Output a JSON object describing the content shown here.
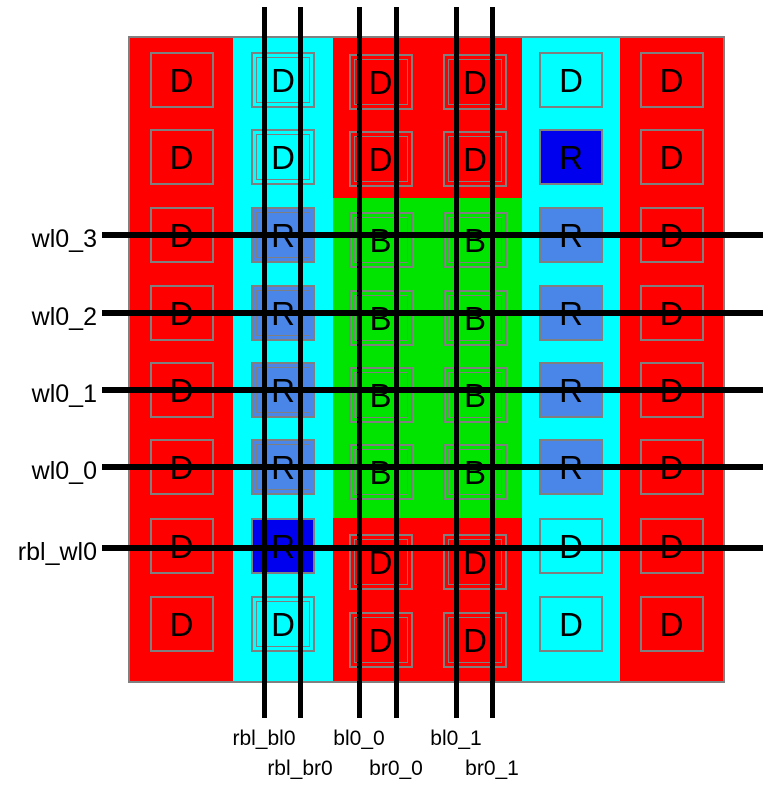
{
  "figure": {
    "description": "IC layout plot of a replica bitcell array with dummy (D), replica (R) and storage (B) cells crossed by wordlines and bitlines"
  },
  "colors": {
    "background": "#ffffff",
    "dummy_red": "#ff0000",
    "replica_column_cyan": "#00ffff",
    "bitcell_green": "#00e400",
    "replica_light_blue": "#4a86e8",
    "replica_dark_blue": "#0000ee",
    "outline_gray": "#7f7f7f",
    "border_gray": "#808080",
    "wire_black": "#000000"
  },
  "wordlines": [
    {
      "label": "wl0_3"
    },
    {
      "label": "wl0_2"
    },
    {
      "label": "wl0_1"
    },
    {
      "label": "wl0_0"
    },
    {
      "label": "rbl_wl0"
    }
  ],
  "bitlines": [
    {
      "label": "rbl_bl0"
    },
    {
      "label": "rbl_br0"
    },
    {
      "label": "bl0_0"
    },
    {
      "label": "br0_0"
    },
    {
      "label": "bl0_1"
    },
    {
      "label": "br0_1"
    }
  ],
  "grid": {
    "rows": [
      {
        "cells": [
          {
            "letter": "D",
            "fill": null,
            "double": false
          },
          {
            "letter": "D",
            "fill": null,
            "double": true
          },
          {
            "letter": "D",
            "fill": null,
            "double": true
          },
          {
            "letter": "D",
            "fill": null,
            "double": true
          },
          {
            "letter": "D",
            "fill": null,
            "double": false
          },
          {
            "letter": "D",
            "fill": null,
            "double": false
          }
        ]
      },
      {
        "cells": [
          {
            "letter": "D",
            "fill": null,
            "double": false
          },
          {
            "letter": "D",
            "fill": null,
            "double": true
          },
          {
            "letter": "D",
            "fill": null,
            "double": true
          },
          {
            "letter": "D",
            "fill": null,
            "double": true
          },
          {
            "letter": "R",
            "fill": "dark_blue",
            "double": false
          },
          {
            "letter": "D",
            "fill": null,
            "double": false
          }
        ]
      },
      {
        "cells": [
          {
            "letter": "D",
            "fill": null,
            "double": false
          },
          {
            "letter": "R",
            "fill": "light_blue",
            "double": true
          },
          {
            "letter": "B",
            "fill": null,
            "double": true
          },
          {
            "letter": "B",
            "fill": null,
            "double": true
          },
          {
            "letter": "R",
            "fill": "light_blue",
            "double": false
          },
          {
            "letter": "D",
            "fill": null,
            "double": false
          }
        ]
      },
      {
        "cells": [
          {
            "letter": "D",
            "fill": null,
            "double": false
          },
          {
            "letter": "R",
            "fill": "light_blue",
            "double": true
          },
          {
            "letter": "B",
            "fill": null,
            "double": true
          },
          {
            "letter": "B",
            "fill": null,
            "double": true
          },
          {
            "letter": "R",
            "fill": "light_blue",
            "double": false
          },
          {
            "letter": "D",
            "fill": null,
            "double": false
          }
        ]
      },
      {
        "cells": [
          {
            "letter": "D",
            "fill": null,
            "double": false
          },
          {
            "letter": "R",
            "fill": "light_blue",
            "double": true
          },
          {
            "letter": "B",
            "fill": null,
            "double": true
          },
          {
            "letter": "B",
            "fill": null,
            "double": true
          },
          {
            "letter": "R",
            "fill": "light_blue",
            "double": false
          },
          {
            "letter": "D",
            "fill": null,
            "double": false
          }
        ]
      },
      {
        "cells": [
          {
            "letter": "D",
            "fill": null,
            "double": false
          },
          {
            "letter": "R",
            "fill": "light_blue",
            "double": true
          },
          {
            "letter": "B",
            "fill": null,
            "double": true
          },
          {
            "letter": "B",
            "fill": null,
            "double": true
          },
          {
            "letter": "R",
            "fill": "light_blue",
            "double": false
          },
          {
            "letter": "D",
            "fill": null,
            "double": false
          }
        ]
      },
      {
        "cells": [
          {
            "letter": "D",
            "fill": null,
            "double": false
          },
          {
            "letter": "R",
            "fill": "dark_blue",
            "double": false
          },
          {
            "letter": "D",
            "fill": null,
            "double": true
          },
          {
            "letter": "D",
            "fill": null,
            "double": true
          },
          {
            "letter": "D",
            "fill": null,
            "double": false
          },
          {
            "letter": "D",
            "fill": null,
            "double": false
          }
        ]
      },
      {
        "cells": [
          {
            "letter": "D",
            "fill": null,
            "double": false
          },
          {
            "letter": "D",
            "fill": null,
            "double": true
          },
          {
            "letter": "D",
            "fill": null,
            "double": true
          },
          {
            "letter": "D",
            "fill": null,
            "double": true
          },
          {
            "letter": "D",
            "fill": null,
            "double": false
          },
          {
            "letter": "D",
            "fill": null,
            "double": false
          }
        ]
      }
    ]
  }
}
